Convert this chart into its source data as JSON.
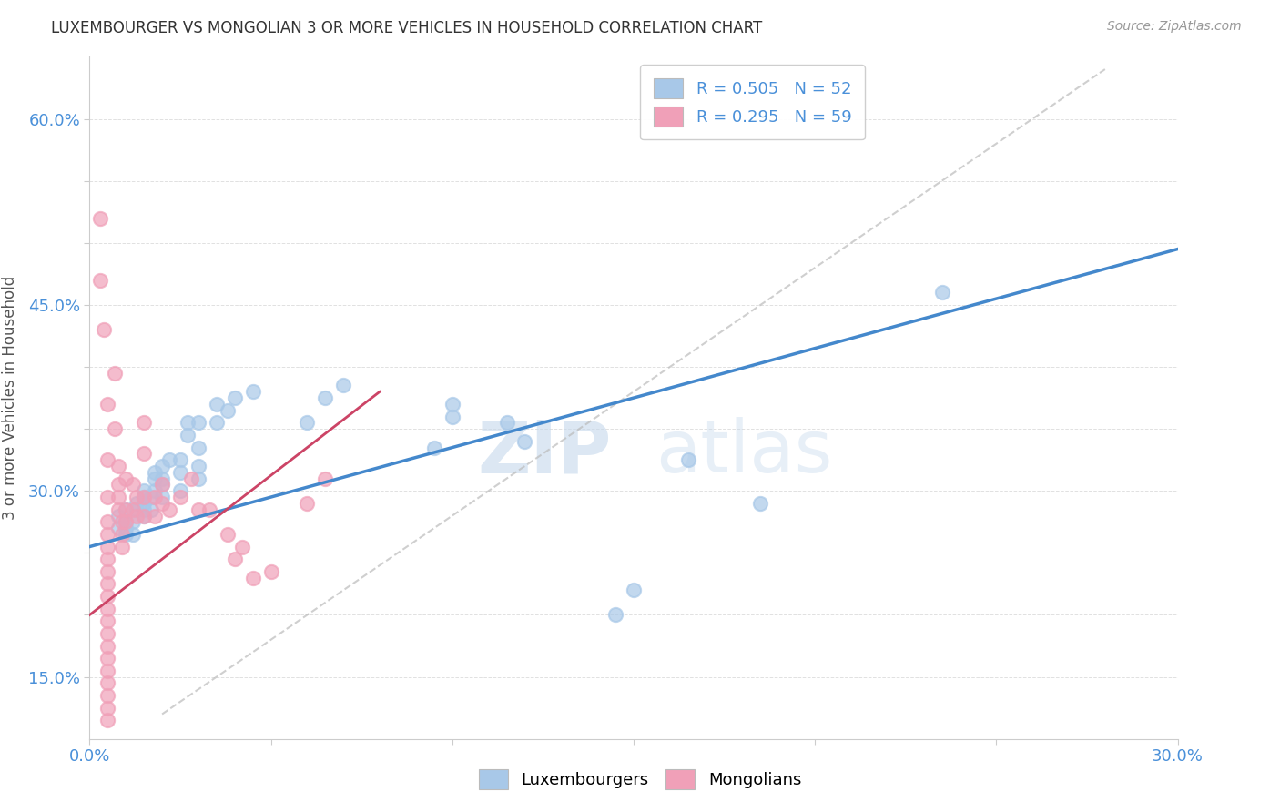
{
  "title": "LUXEMBOURGER VS MONGOLIAN 3 OR MORE VEHICLES IN HOUSEHOLD CORRELATION CHART",
  "source": "Source: ZipAtlas.com",
  "ylabel": "3 or more Vehicles in Household",
  "xlim": [
    0.0,
    0.3
  ],
  "ylim": [
    0.1,
    0.65
  ],
  "xticks": [
    0.0,
    0.05,
    0.1,
    0.15,
    0.2,
    0.25,
    0.3
  ],
  "yticks": [
    0.15,
    0.2,
    0.25,
    0.3,
    0.35,
    0.4,
    0.45,
    0.5,
    0.55,
    0.6
  ],
  "ytick_labels": [
    "15.0%",
    "",
    "",
    "30.0%",
    "",
    "",
    "45.0%",
    "",
    "",
    "60.0%"
  ],
  "xtick_labels": [
    "0.0%",
    "",
    "",
    "",
    "",
    "",
    "30.0%"
  ],
  "r_blue": 0.505,
  "n_blue": 52,
  "r_pink": 0.295,
  "n_pink": 59,
  "blue_color": "#a8c8e8",
  "pink_color": "#f0a0b8",
  "blue_line_color": "#4488cc",
  "pink_line_color": "#cc4466",
  "watermark_zip": "ZIP",
  "watermark_atlas": "atlas",
  "legend_blue_label": "Luxembourgers",
  "legend_pink_label": "Mongolians",
  "blue_scatter": [
    [
      0.008,
      0.27
    ],
    [
      0.008,
      0.28
    ],
    [
      0.01,
      0.265
    ],
    [
      0.01,
      0.27
    ],
    [
      0.01,
      0.275
    ],
    [
      0.01,
      0.285
    ],
    [
      0.012,
      0.265
    ],
    [
      0.012,
      0.275
    ],
    [
      0.013,
      0.285
    ],
    [
      0.013,
      0.29
    ],
    [
      0.015,
      0.28
    ],
    [
      0.015,
      0.285
    ],
    [
      0.015,
      0.29
    ],
    [
      0.015,
      0.295
    ],
    [
      0.015,
      0.3
    ],
    [
      0.017,
      0.285
    ],
    [
      0.017,
      0.295
    ],
    [
      0.018,
      0.3
    ],
    [
      0.018,
      0.31
    ],
    [
      0.018,
      0.315
    ],
    [
      0.02,
      0.295
    ],
    [
      0.02,
      0.305
    ],
    [
      0.02,
      0.31
    ],
    [
      0.02,
      0.32
    ],
    [
      0.022,
      0.325
    ],
    [
      0.025,
      0.3
    ],
    [
      0.025,
      0.315
    ],
    [
      0.025,
      0.325
    ],
    [
      0.027,
      0.345
    ],
    [
      0.027,
      0.355
    ],
    [
      0.03,
      0.31
    ],
    [
      0.03,
      0.32
    ],
    [
      0.03,
      0.335
    ],
    [
      0.03,
      0.355
    ],
    [
      0.035,
      0.355
    ],
    [
      0.035,
      0.37
    ],
    [
      0.038,
      0.365
    ],
    [
      0.04,
      0.375
    ],
    [
      0.045,
      0.38
    ],
    [
      0.06,
      0.355
    ],
    [
      0.065,
      0.375
    ],
    [
      0.07,
      0.385
    ],
    [
      0.095,
      0.335
    ],
    [
      0.1,
      0.36
    ],
    [
      0.1,
      0.37
    ],
    [
      0.115,
      0.355
    ],
    [
      0.12,
      0.34
    ],
    [
      0.145,
      0.2
    ],
    [
      0.15,
      0.22
    ],
    [
      0.165,
      0.325
    ],
    [
      0.185,
      0.29
    ],
    [
      0.235,
      0.46
    ]
  ],
  "pink_scatter": [
    [
      0.003,
      0.52
    ],
    [
      0.003,
      0.47
    ],
    [
      0.004,
      0.43
    ],
    [
      0.005,
      0.37
    ],
    [
      0.005,
      0.325
    ],
    [
      0.005,
      0.295
    ],
    [
      0.005,
      0.275
    ],
    [
      0.005,
      0.265
    ],
    [
      0.005,
      0.255
    ],
    [
      0.005,
      0.245
    ],
    [
      0.005,
      0.235
    ],
    [
      0.005,
      0.225
    ],
    [
      0.005,
      0.215
    ],
    [
      0.005,
      0.205
    ],
    [
      0.005,
      0.195
    ],
    [
      0.005,
      0.185
    ],
    [
      0.005,
      0.175
    ],
    [
      0.005,
      0.165
    ],
    [
      0.005,
      0.155
    ],
    [
      0.005,
      0.145
    ],
    [
      0.005,
      0.135
    ],
    [
      0.005,
      0.125
    ],
    [
      0.005,
      0.115
    ],
    [
      0.007,
      0.395
    ],
    [
      0.007,
      0.35
    ],
    [
      0.008,
      0.32
    ],
    [
      0.008,
      0.305
    ],
    [
      0.008,
      0.295
    ],
    [
      0.008,
      0.285
    ],
    [
      0.009,
      0.275
    ],
    [
      0.009,
      0.265
    ],
    [
      0.009,
      0.255
    ],
    [
      0.01,
      0.31
    ],
    [
      0.01,
      0.285
    ],
    [
      0.01,
      0.275
    ],
    [
      0.012,
      0.305
    ],
    [
      0.012,
      0.285
    ],
    [
      0.013,
      0.295
    ],
    [
      0.013,
      0.28
    ],
    [
      0.015,
      0.355
    ],
    [
      0.015,
      0.33
    ],
    [
      0.015,
      0.295
    ],
    [
      0.015,
      0.28
    ],
    [
      0.018,
      0.295
    ],
    [
      0.018,
      0.28
    ],
    [
      0.02,
      0.305
    ],
    [
      0.02,
      0.29
    ],
    [
      0.022,
      0.285
    ],
    [
      0.025,
      0.295
    ],
    [
      0.028,
      0.31
    ],
    [
      0.03,
      0.285
    ],
    [
      0.033,
      0.285
    ],
    [
      0.038,
      0.265
    ],
    [
      0.04,
      0.245
    ],
    [
      0.042,
      0.255
    ],
    [
      0.045,
      0.23
    ],
    [
      0.05,
      0.235
    ],
    [
      0.06,
      0.29
    ],
    [
      0.065,
      0.31
    ]
  ],
  "blue_trend_x": [
    0.0,
    0.3
  ],
  "blue_trend_y": [
    0.255,
    0.495
  ],
  "pink_trend_x": [
    0.0,
    0.08
  ],
  "pink_trend_y": [
    0.2,
    0.38
  ]
}
